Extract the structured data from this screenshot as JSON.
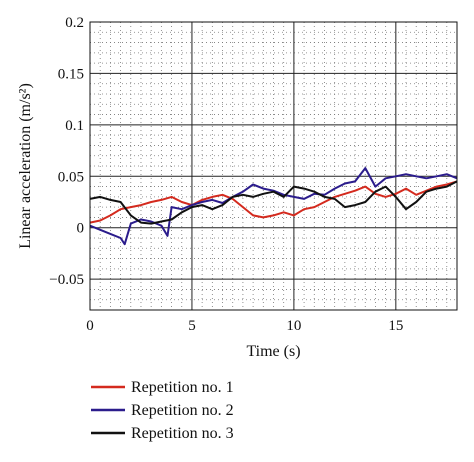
{
  "chart_data": {
    "type": "line",
    "xlabel": "Time (s)",
    "ylabel": "Linear acceleration (m/s²)",
    "xlim": [
      0,
      18
    ],
    "ylim": [
      -0.08,
      0.2
    ],
    "xticks": [
      0,
      5,
      10,
      15
    ],
    "yticks": [
      0.2,
      0.15,
      0.1,
      0.05,
      0,
      -0.05
    ],
    "ytick_labels": [
      "0.2",
      "0.15",
      "0.1",
      "0.05",
      "0",
      "−0.05"
    ],
    "grid": "major solid, minor dotted",
    "legend_position": "below plot",
    "series": [
      {
        "name": "Repetition no. 1",
        "color": "#d42a1e",
        "x": [
          0,
          0.5,
          1.0,
          1.5,
          2.0,
          2.5,
          3.0,
          3.5,
          4.0,
          4.5,
          5.0,
          5.5,
          6.0,
          6.5,
          7.0,
          7.5,
          8.0,
          8.5,
          9.0,
          9.5,
          10.0,
          10.5,
          11.0,
          11.5,
          12.0,
          12.5,
          13.0,
          13.5,
          14.0,
          14.5,
          15.0,
          15.5,
          16.0,
          16.5,
          17.0,
          17.5,
          18.0
        ],
        "values": [
          0.005,
          0.007,
          0.012,
          0.018,
          0.02,
          0.022,
          0.025,
          0.027,
          0.03,
          0.025,
          0.022,
          0.027,
          0.03,
          0.032,
          0.028,
          0.02,
          0.012,
          0.01,
          0.012,
          0.015,
          0.012,
          0.018,
          0.02,
          0.025,
          0.03,
          0.033,
          0.036,
          0.04,
          0.033,
          0.03,
          0.033,
          0.038,
          0.032,
          0.036,
          0.04,
          0.042,
          0.045
        ]
      },
      {
        "name": "Repetition no. 2",
        "color": "#2b1c8c",
        "x": [
          0,
          0.5,
          1.0,
          1.5,
          1.7,
          2.0,
          2.5,
          3.0,
          3.5,
          3.8,
          4.0,
          4.5,
          5.0,
          5.5,
          6.0,
          6.5,
          7.0,
          7.5,
          8.0,
          8.5,
          9.0,
          9.5,
          10.0,
          10.5,
          11.0,
          11.5,
          12.0,
          12.5,
          13.0,
          13.5,
          14.0,
          14.5,
          15.0,
          15.5,
          16.0,
          16.5,
          17.0,
          17.5,
          18.0
        ],
        "values": [
          0.002,
          -0.002,
          -0.006,
          -0.01,
          -0.016,
          0.004,
          0.008,
          0.006,
          0.002,
          -0.008,
          0.02,
          0.018,
          0.022,
          0.025,
          0.027,
          0.024,
          0.03,
          0.035,
          0.042,
          0.038,
          0.036,
          0.032,
          0.03,
          0.028,
          0.033,
          0.032,
          0.038,
          0.043,
          0.045,
          0.058,
          0.04,
          0.048,
          0.05,
          0.052,
          0.05,
          0.048,
          0.05,
          0.052,
          0.048
        ]
      },
      {
        "name": "Repetition no. 3",
        "color": "#111111",
        "x": [
          0,
          0.5,
          1.0,
          1.5,
          2.0,
          2.5,
          3.0,
          3.5,
          4.0,
          4.5,
          5.0,
          5.5,
          6.0,
          6.5,
          7.0,
          7.5,
          8.0,
          8.5,
          9.0,
          9.5,
          10.0,
          10.5,
          11.0,
          11.5,
          12.0,
          12.5,
          13.0,
          13.5,
          14.0,
          14.5,
          15.0,
          15.5,
          16.0,
          16.5,
          17.0,
          17.5,
          18.0
        ],
        "values": [
          0.028,
          0.03,
          0.027,
          0.025,
          0.012,
          0.005,
          0.004,
          0.006,
          0.008,
          0.015,
          0.02,
          0.022,
          0.018,
          0.022,
          0.03,
          0.032,
          0.03,
          0.033,
          0.035,
          0.03,
          0.04,
          0.038,
          0.035,
          0.03,
          0.028,
          0.02,
          0.022,
          0.025,
          0.035,
          0.04,
          0.03,
          0.018,
          0.025,
          0.035,
          0.038,
          0.04,
          0.045
        ]
      }
    ]
  }
}
